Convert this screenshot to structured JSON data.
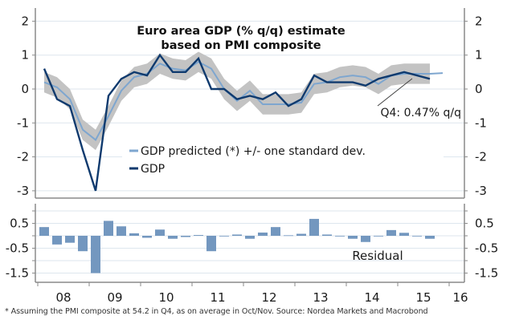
{
  "chart_data": [
    {
      "type": "line",
      "title": [
        "Euro area GDP (% q/q) estimate",
        "based on PMI composite"
      ],
      "xlabel": "",
      "ylabel": "",
      "ylim": [
        -3,
        2
      ],
      "yticks": [
        2,
        1,
        0,
        -1,
        -2,
        -3
      ],
      "grid": true,
      "legend_placement": "bottom-center",
      "x": [
        "08Q1",
        "08Q2",
        "08Q3",
        "08Q4",
        "09Q1",
        "09Q2",
        "09Q3",
        "09Q4",
        "10Q1",
        "10Q2",
        "10Q3",
        "10Q4",
        "11Q1",
        "11Q2",
        "11Q3",
        "11Q4",
        "12Q1",
        "12Q2",
        "12Q3",
        "12Q4",
        "13Q1",
        "13Q2",
        "13Q3",
        "13Q4",
        "14Q1",
        "14Q2",
        "14Q3",
        "14Q4",
        "15Q1",
        "15Q2",
        "15Q3",
        "15Q4"
      ],
      "series": [
        {
          "name": "GDP predicted (*) +/- one standard dev.",
          "color": "#7ea6cf",
          "band_color": "#c3c3c3",
          "band_halfwidth": 0.3,
          "band_end_index": 30,
          "values": [
            0.2,
            0.05,
            -0.3,
            -1.2,
            -1.5,
            -0.8,
            -0.05,
            0.35,
            0.45,
            0.75,
            0.6,
            0.55,
            0.8,
            0.6,
            0.0,
            -0.35,
            -0.05,
            -0.45,
            -0.45,
            -0.45,
            -0.4,
            0.15,
            0.2,
            0.35,
            0.4,
            0.35,
            0.15,
            0.4,
            0.45,
            0.45,
            0.45,
            0.47
          ]
        },
        {
          "name": "GDP",
          "color": "#0f3a6e",
          "values": [
            0.6,
            -0.3,
            -0.5,
            -1.8,
            -3.0,
            -0.2,
            0.3,
            0.5,
            0.4,
            1.0,
            0.5,
            0.5,
            0.9,
            0.0,
            0.0,
            -0.3,
            -0.2,
            -0.3,
            -0.1,
            -0.5,
            -0.3,
            0.4,
            0.2,
            0.2,
            0.2,
            0.1,
            0.3,
            0.4,
            0.5,
            0.4,
            0.3,
            null
          ]
        }
      ],
      "annotation": "Q4: 0.47% q/q"
    },
    {
      "type": "bar",
      "title": "Residual",
      "ylim": [
        -1.5,
        1.0
      ],
      "yticks": [
        0.5,
        -0.5,
        -1.5
      ],
      "grid": true,
      "bar_color": "#7397bf",
      "categories": [
        "08Q1",
        "08Q2",
        "08Q3",
        "08Q4",
        "09Q1",
        "09Q2",
        "09Q3",
        "09Q4",
        "10Q1",
        "10Q2",
        "10Q3",
        "10Q4",
        "11Q1",
        "11Q2",
        "11Q3",
        "11Q4",
        "12Q1",
        "12Q2",
        "12Q3",
        "12Q4",
        "13Q1",
        "13Q2",
        "13Q3",
        "13Q4",
        "14Q1",
        "14Q2",
        "14Q3",
        "14Q4",
        "15Q1",
        "15Q2",
        "15Q3"
      ],
      "values": [
        0.35,
        -0.35,
        -0.28,
        -0.62,
        -1.5,
        0.6,
        0.38,
        0.1,
        -0.08,
        0.25,
        -0.12,
        -0.05,
        0.03,
        -0.62,
        0.0,
        0.05,
        -0.12,
        0.13,
        0.35,
        0.02,
        0.08,
        0.68,
        0.05,
        0.0,
        -0.12,
        -0.25,
        0.0,
        0.23,
        0.12,
        -0.02,
        -0.12
      ],
      "x_tick_labels": [
        "08",
        "09",
        "10",
        "11",
        "12",
        "13",
        "14",
        "15",
        "16"
      ]
    }
  ],
  "footnote": "* Assuming the PMI composite at 54.2 in Q4, as on average in Oct/Nov. Source: Nordea Markets and Macrobond"
}
